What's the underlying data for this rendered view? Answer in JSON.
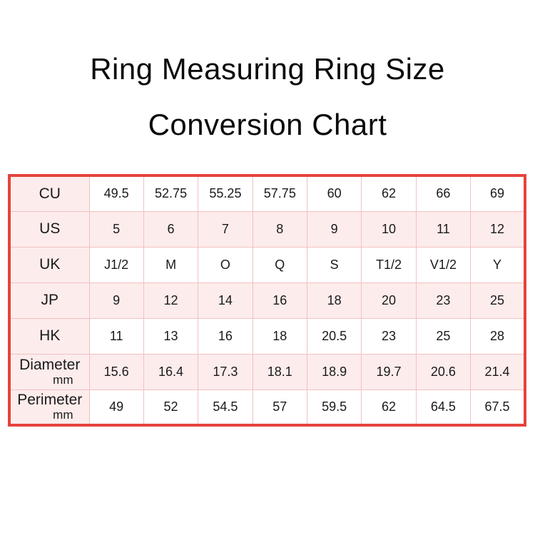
{
  "title": {
    "line1": "Ring Measuring Ring Size",
    "line2": "Conversion Chart"
  },
  "colors": {
    "table_border": "#e5433d",
    "grid_line": "#f3c0c0",
    "row_pink": "#fdecec",
    "row_white": "#ffffff",
    "text": "#1a1a1a"
  },
  "chart_data": {
    "type": "table",
    "title": "Ring Measuring Ring Size Conversion Chart",
    "legend_position": "none",
    "grid": true,
    "rows": [
      {
        "label": "CU",
        "sub": "",
        "shade": "white",
        "values": [
          "49.5",
          "52.75",
          "55.25",
          "57.75",
          "60",
          "62",
          "66",
          "69"
        ]
      },
      {
        "label": "US",
        "sub": "",
        "shade": "pink",
        "values": [
          "5",
          "6",
          "7",
          "8",
          "9",
          "10",
          "11",
          "12"
        ]
      },
      {
        "label": "UK",
        "sub": "",
        "shade": "white",
        "values": [
          "J1/2",
          "M",
          "O",
          "Q",
          "S",
          "T1/2",
          "V1/2",
          "Y"
        ]
      },
      {
        "label": "JP",
        "sub": "",
        "shade": "pink",
        "values": [
          "9",
          "12",
          "14",
          "16",
          "18",
          "20",
          "23",
          "25"
        ]
      },
      {
        "label": "HK",
        "sub": "",
        "shade": "white",
        "values": [
          "11",
          "13",
          "16",
          "18",
          "20.5",
          "23",
          "25",
          "28"
        ]
      },
      {
        "label": "Diameter",
        "sub": "mm",
        "shade": "pink",
        "values": [
          "15.6",
          "16.4",
          "17.3",
          "18.1",
          "18.9",
          "19.7",
          "20.6",
          "21.4"
        ]
      },
      {
        "label": "Perimeter",
        "sub": "mm",
        "shade": "white",
        "values": [
          "49",
          "52",
          "54.5",
          "57",
          "59.5",
          "62",
          "64.5",
          "67.5"
        ]
      }
    ]
  }
}
